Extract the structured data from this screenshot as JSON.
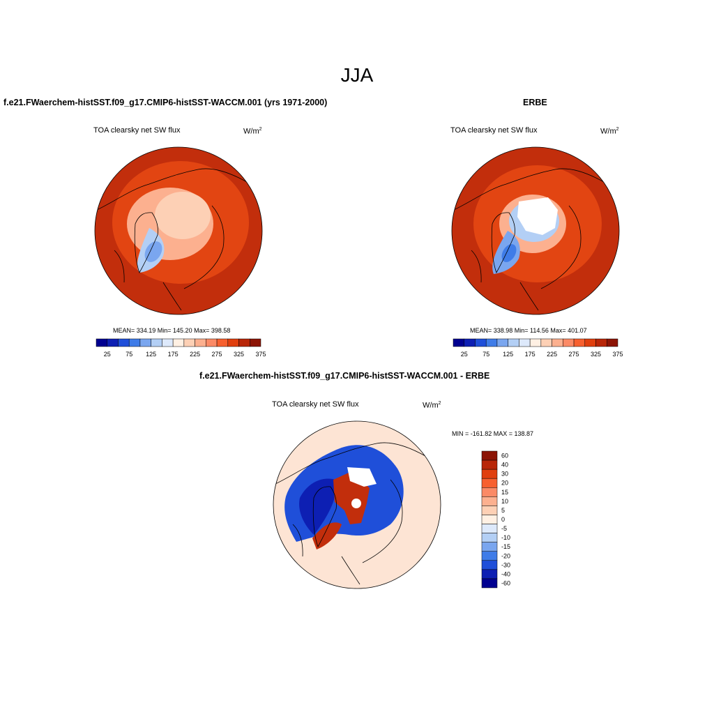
{
  "title": "JJA",
  "panels": [
    {
      "case_title": "f.e21.FWaerchem-histSST.f09_g17.CMIP6-histSST-WACCM.001 (yrs 1971-2000)",
      "variable": "TOA clearsky net SW flux",
      "units_base": "W/m",
      "units_exp": "2",
      "stats": "MEAN= 334.19  Min= 145.20  Max= 398.58",
      "colorbar": {
        "orientation": "horizontal",
        "colors": [
          "#000090",
          "#0d1fb3",
          "#1f4fd9",
          "#3f7ce8",
          "#7aa6ef",
          "#b3cff5",
          "#dde9fb",
          "#fff0e3",
          "#fdd0b5",
          "#fcb08f",
          "#fb8a66",
          "#f7602f",
          "#e03f0e",
          "#b82608",
          "#8c1405"
        ],
        "tick_labels": [
          "25",
          "75",
          "125",
          "175",
          "225",
          "275",
          "325",
          "375"
        ]
      }
    },
    {
      "case_title": "ERBE",
      "variable": "TOA clearsky net SW flux",
      "units_base": "W/m",
      "units_exp": "2",
      "stats": "MEAN= 338.98  Min= 114.56  Max= 401.07",
      "colorbar": {
        "orientation": "horizontal",
        "colors": [
          "#000090",
          "#0d1fb3",
          "#1f4fd9",
          "#3f7ce8",
          "#7aa6ef",
          "#b3cff5",
          "#dde9fb",
          "#fff0e3",
          "#fdd0b5",
          "#fcb08f",
          "#fb8a66",
          "#f7602f",
          "#e03f0e",
          "#b82608",
          "#8c1405"
        ],
        "tick_labels": [
          "25",
          "75",
          "125",
          "175",
          "225",
          "275",
          "325",
          "375"
        ]
      }
    },
    {
      "case_title": "f.e21.FWaerchem-histSST.f09_g17.CMIP6-histSST-WACCM.001 - ERBE",
      "variable": "TOA clearsky net SW flux",
      "units_base": "W/m",
      "units_exp": "2",
      "stats": "MIN = -161.82 MAX = 138.87",
      "colorbar": {
        "orientation": "vertical",
        "colors": [
          "#8c1405",
          "#b82608",
          "#e03f0e",
          "#f7602f",
          "#fb8a66",
          "#fcb08f",
          "#fdd0b5",
          "#fff0e3",
          "#dde9fb",
          "#b3cff5",
          "#7aa6ef",
          "#3f7ce8",
          "#1f4fd9",
          "#0d1fb3",
          "#000090"
        ],
        "tick_labels": [
          "60",
          "40",
          "30",
          "20",
          "15",
          "10",
          "5",
          "0",
          "-5",
          "-10",
          "-15",
          "-20",
          "-30",
          "-40",
          "-60"
        ]
      }
    }
  ],
  "map_colors": {
    "mean_outer": "#c22e0c",
    "mean_mid": "#e24512",
    "mean_light": "#fcb08f",
    "mean_pale": "#fdd0b5",
    "greenland_light": "#b3cff5",
    "greenland_mid": "#7aa6ef",
    "greenland_dark": "#3f7ce8",
    "missing": "#ffffff",
    "diff_background": "#fde4d4",
    "diff_blue": "#1f4fd9",
    "diff_dark_blue": "#0d1fb3",
    "diff_red": "#c22e0c",
    "coastline": "#000000"
  }
}
